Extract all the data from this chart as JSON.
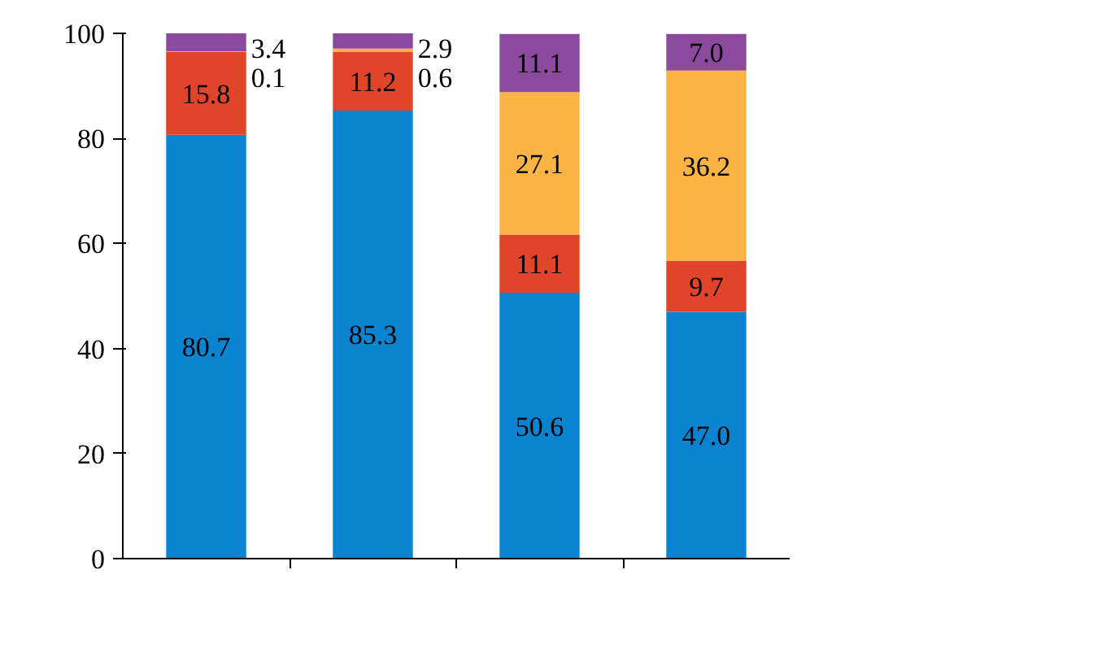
{
  "chart_data": {
    "type": "bar",
    "stacked": true,
    "categories": [
      null,
      null,
      null,
      null
    ],
    "series": [
      {
        "color": "#0a84d0",
        "values": [
          80.7,
          85.3,
          50.6,
          47.0
        ],
        "value_labels": [
          "80.7",
          "85.3",
          "50.6",
          "47.0"
        ]
      },
      {
        "color": "#e0452a",
        "values": [
          15.8,
          11.2,
          11.1,
          9.7
        ],
        "value_labels": [
          "15.8",
          "11.2",
          "11.1",
          "9.7"
        ]
      },
      {
        "color": "#fbb444",
        "values": [
          0.1,
          0.6,
          27.1,
          36.2
        ],
        "value_labels": [
          "0.1",
          "0.6",
          "27.1",
          "36.2"
        ]
      },
      {
        "color": "#8c4a9e",
        "values": [
          3.4,
          2.9,
          11.1,
          7.0
        ],
        "value_labels": [
          "3.4",
          "2.9",
          "11.1",
          "7.0"
        ]
      }
    ],
    "ylim": [
      0,
      100
    ],
    "yticks": [
      0,
      20,
      40,
      60,
      80,
      100
    ],
    "grid": false
  }
}
